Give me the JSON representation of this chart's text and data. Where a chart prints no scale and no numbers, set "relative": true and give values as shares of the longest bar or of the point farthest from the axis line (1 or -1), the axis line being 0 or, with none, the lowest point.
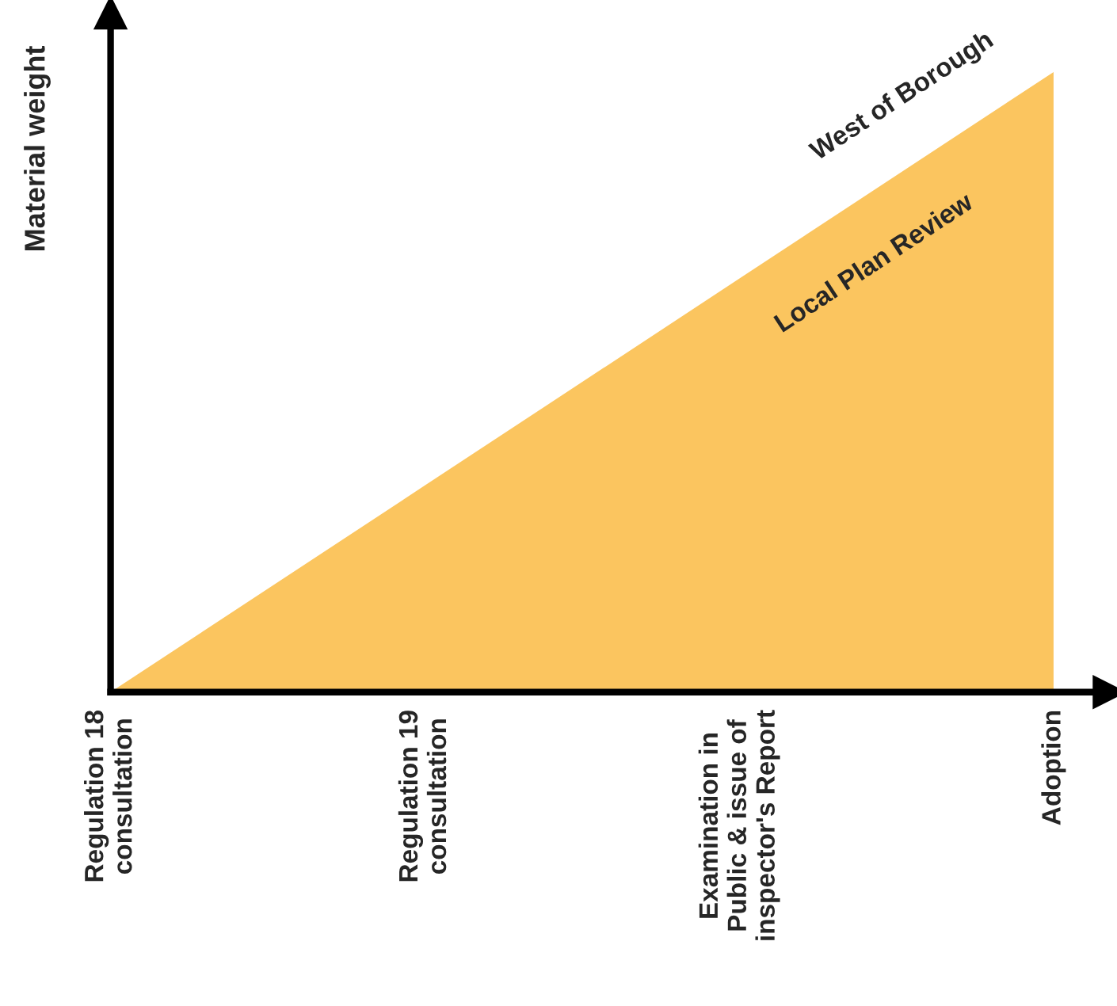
{
  "chart_data": {
    "type": "area",
    "relative": true,
    "ylabel": "Material weight",
    "categories": [
      "Regulation 18\nconsultation",
      "Regulation 19\nconsultation",
      "Examination in\nPublic & issue of\ninspector's Report",
      "Adoption"
    ],
    "series": [
      {
        "color": "#fbc55f",
        "values": [
          0,
          0.3333,
          0.6667,
          1
        ]
      }
    ],
    "annotations": [
      "West of Borough",
      "Local Plan Review"
    ]
  }
}
